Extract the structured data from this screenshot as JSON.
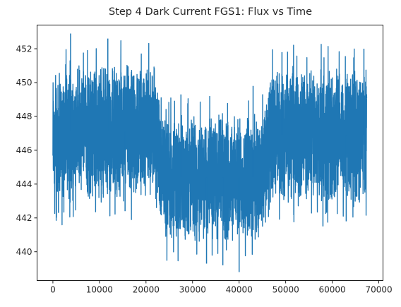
{
  "chart_data": {
    "type": "line",
    "title": "Step 4 Dark Current FGS1: Flux vs Time",
    "xlabel": "",
    "ylabel": "",
    "xlim": [
      -3400,
      70900
    ],
    "ylim": [
      438.3,
      453.4
    ],
    "xticks": [
      0,
      10000,
      20000,
      30000,
      40000,
      50000,
      60000,
      70000
    ],
    "yticks": [
      440,
      442,
      444,
      446,
      448,
      450,
      452
    ],
    "grid": false,
    "legend": "none",
    "series": [
      {
        "color": "#1f77b4",
        "x_range": [
          0,
          67400
        ],
        "segments": [
          {
            "x": [
              0,
              21000
            ],
            "center": 447.1,
            "typical_band": [
              442.8,
              451.5
            ],
            "max": 452.9,
            "min": 442.3
          },
          {
            "x": [
              21000,
              25000
            ],
            "transition": "decrease"
          },
          {
            "x": [
              25000,
              44500
            ],
            "center": 444.4,
            "typical_band": [
              440.5,
              448.5
            ],
            "max": 449.8,
            "min": 438.8
          },
          {
            "x": [
              44500,
              47500
            ],
            "transition": "increase"
          },
          {
            "x": [
              47500,
              67400
            ],
            "center": 446.9,
            "typical_band": [
              442.5,
              451.0
            ],
            "max": 452.0,
            "min": 441.5
          }
        ]
      }
    ]
  }
}
